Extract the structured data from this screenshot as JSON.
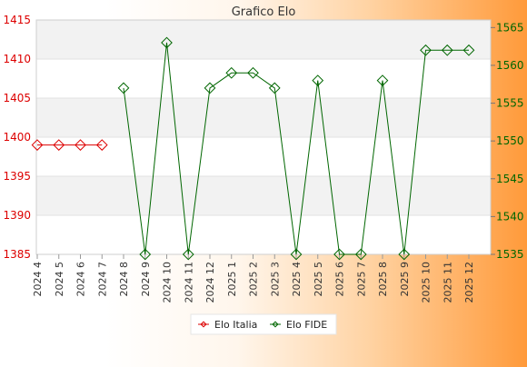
{
  "chart_data": {
    "type": "line",
    "title": "Grafico Elo",
    "categories": [
      "2024 4",
      "2024 5",
      "2024 6",
      "2024 7",
      "2024 8",
      "2024 9",
      "2024 10",
      "2024 11",
      "2024 12",
      "2025 1",
      "2025 2",
      "2025 3",
      "2025 4",
      "2025 5",
      "2025 6",
      "2025 7",
      "2025 8",
      "2025 9",
      "2025 10",
      "2025 11",
      "2025 12"
    ],
    "left_axis": {
      "ticks": [
        1385,
        1390,
        1395,
        1400,
        1405,
        1410,
        1415
      ],
      "range": [
        1385,
        1415
      ],
      "color": "#dd0000"
    },
    "right_axis": {
      "ticks": [
        1535,
        1540,
        1545,
        1550,
        1555,
        1560,
        1565
      ],
      "range": [
        1535,
        1566
      ],
      "color": "#006600"
    },
    "grid": true,
    "legend_position": "bottom-center",
    "series": [
      {
        "name": "Elo Italia",
        "axis": "left",
        "color": "#dd0000",
        "values": [
          1399,
          1399,
          1399,
          1399,
          null,
          null,
          null,
          null,
          null,
          null,
          null,
          null,
          null,
          null,
          null,
          null,
          null,
          null,
          null,
          null,
          null
        ]
      },
      {
        "name": "Elo FIDE",
        "axis": "right",
        "color": "#006600",
        "values": [
          null,
          null,
          null,
          null,
          1557,
          1535,
          1563,
          1535,
          1557,
          1559,
          1559,
          1557,
          1535,
          1558,
          1535,
          1535,
          1558,
          1535,
          1562,
          1562,
          1562
        ]
      }
    ]
  }
}
